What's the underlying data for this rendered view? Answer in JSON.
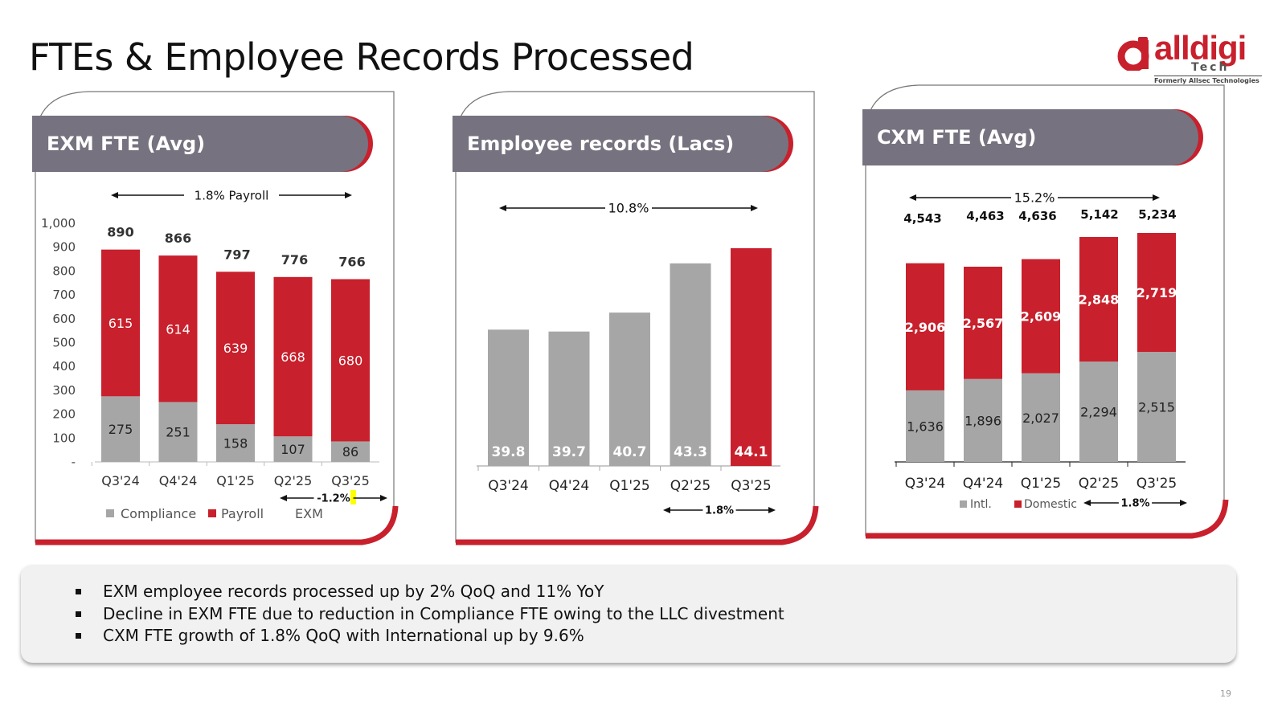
{
  "page": {
    "title": "FTEs & Employee Records Processed",
    "page_number": "19"
  },
  "logo": {
    "word": "alldigi",
    "sub": "Tech",
    "tagline": "Formerly Allsec Technologies"
  },
  "colors": {
    "red": "#c8202c",
    "gray": "#a6a6a6",
    "header": "#77727f"
  },
  "notes": {
    "items": [
      "EXM employee records processed up by 2% QoQ and 11% YoY",
      "Decline in EXM FTE due to reduction in Compliance FTE  owing to the LLC divestment",
      "CXM FTE growth of 1.8% QoQ with International up by 9.6%"
    ]
  },
  "chart_data": [
    {
      "type": "bar",
      "title": "EXM FTE (Avg)",
      "stacked": true,
      "categories": [
        "Q3'24",
        "Q4'24",
        "Q1'25",
        "Q2'25",
        "Q3'25"
      ],
      "series": [
        {
          "name": "Compliance",
          "values": [
            275,
            251,
            158,
            107,
            86
          ],
          "color": "#a6a6a6"
        },
        {
          "name": "Payroll",
          "values": [
            615,
            614,
            639,
            668,
            680
          ],
          "color": "#c8202c"
        }
      ],
      "totals": [
        "890",
        "866",
        "797",
        "776",
        "766"
      ],
      "extra_legend": "EXM",
      "yticks": [
        "1,000",
        "900",
        "800",
        "700",
        "600",
        "500",
        "400",
        "300",
        "200",
        "100",
        "-"
      ],
      "ylim": [
        0,
        1000
      ],
      "annotations": {
        "top": "1.8% Payroll",
        "bottom": "-1.2%"
      },
      "grid": false
    },
    {
      "type": "bar",
      "title": "Employee records (Lacs)",
      "categories": [
        "Q3'24",
        "Q4'24",
        "Q1'25",
        "Q2'25",
        "Q3'25"
      ],
      "values": [
        39.8,
        39.7,
        40.7,
        43.3,
        44.1
      ],
      "labels": [
        "39.8",
        "39.7",
        "40.7",
        "43.3",
        "44.1"
      ],
      "colors": [
        "#a6a6a6",
        "#a6a6a6",
        "#a6a6a6",
        "#a6a6a6",
        "#c8202c"
      ],
      "annotations": {
        "top": "10.8%",
        "bottom": "1.8%"
      },
      "grid": false
    },
    {
      "type": "bar",
      "title": "CXM FTE (Avg)",
      "stacked": true,
      "categories": [
        "Q3'24",
        "Q4'24",
        "Q1'25",
        "Q2'25",
        "Q3'25"
      ],
      "series": [
        {
          "name": "Intl.",
          "values": [
            1636,
            1896,
            2027,
            2294,
            2515
          ],
          "labels": [
            "1,636",
            "1,896",
            "2,027",
            "2,294",
            "2,515"
          ],
          "color": "#a6a6a6"
        },
        {
          "name": "Domestic",
          "values": [
            2906,
            2567,
            2609,
            2848,
            2719
          ],
          "labels": [
            "2,906",
            "2,567",
            "2,609",
            "2,848",
            "2,719"
          ],
          "color": "#c8202c"
        }
      ],
      "totals": [
        "4,543",
        "4,463",
        "4,636",
        "5,142",
        "5,234"
      ],
      "annotations": {
        "top": "15.2%",
        "bottom": "1.8%"
      },
      "grid": false
    }
  ]
}
